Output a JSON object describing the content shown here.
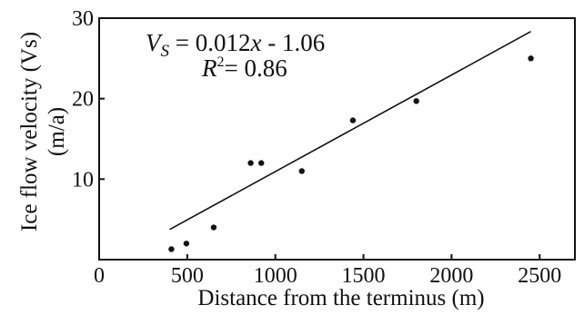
{
  "chart_data": {
    "type": "scatter",
    "xlabel": "Distance from the terminus (m)",
    "ylabel_line1": "Ice flow velocity (Vs)",
    "ylabel_line2": "(m/a)",
    "xlim": [
      0,
      2700
    ],
    "ylim": [
      0,
      30
    ],
    "xticks": [
      0,
      500,
      1000,
      1500,
      2000,
      2500
    ],
    "yticks": [
      10,
      20,
      30
    ],
    "grid": false,
    "points": [
      {
        "x": 410,
        "y": 1.3
      },
      {
        "x": 495,
        "y": 2.0
      },
      {
        "x": 650,
        "y": 4.0
      },
      {
        "x": 860,
        "y": 12.0
      },
      {
        "x": 920,
        "y": 12.0
      },
      {
        "x": 1150,
        "y": 11.0
      },
      {
        "x": 1440,
        "y": 17.3
      },
      {
        "x": 1800,
        "y": 19.7
      },
      {
        "x": 2450,
        "y": 25.0
      }
    ],
    "fit": {
      "slope": 0.012,
      "intercept": -1.06,
      "x_range": [
        400,
        2450
      ]
    },
    "annotations": {
      "equation_lhs_main": "V",
      "equation_lhs_sub": "S",
      "equation_rhs_a": " = 0.012",
      "equation_rhs_var": "x",
      "equation_rhs_b": " - 1.06",
      "r2_var": "R",
      "r2_sup": "2",
      "r2_value": "= 0.86"
    }
  }
}
